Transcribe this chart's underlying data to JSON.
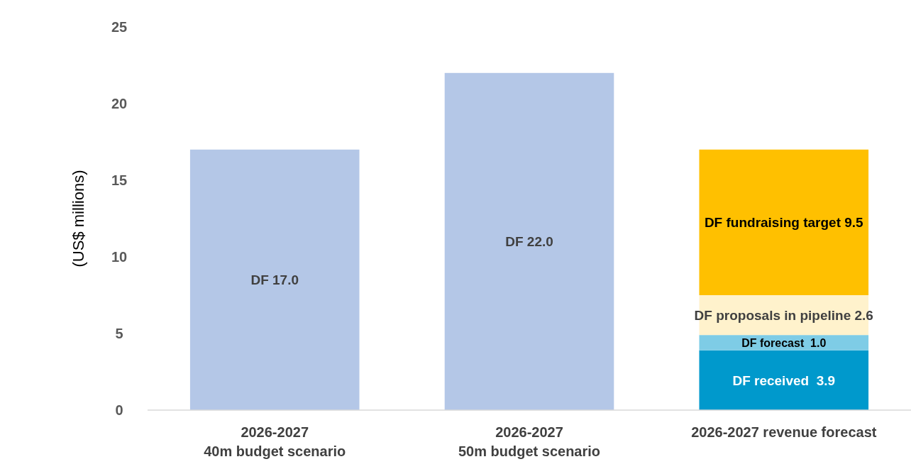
{
  "chart_data": {
    "type": "bar",
    "stacked": true,
    "ylabel": "(US$ millions)",
    "categories": [
      "2026-2027\n40m budget scenario",
      "2026-2027\n50m budget scenario",
      "2026-2027 revenue forecast"
    ],
    "series": [
      {
        "color": "#b4c7e7",
        "values": [
          17.0,
          22.0,
          null
        ],
        "value_labels": [
          "DF 17.0",
          "DF 22.0",
          null
        ]
      },
      {
        "color": "#0099cc",
        "values": [
          null,
          null,
          3.9
        ],
        "value_labels": [
          null,
          null,
          "DF received  3.9"
        ]
      },
      {
        "color": "#7ecce6",
        "values": [
          null,
          null,
          1.0
        ],
        "value_labels": [
          null,
          null,
          "DF forecast  1.0"
        ]
      },
      {
        "color": "#fff2cc",
        "values": [
          null,
          null,
          2.6
        ],
        "value_labels": [
          null,
          null,
          "DF proposals in pipeline 2.6"
        ]
      },
      {
        "color": "#ffc000",
        "values": [
          null,
          null,
          9.5
        ],
        "value_labels": [
          null,
          null,
          "DF fundraising target 9.5"
        ]
      }
    ],
    "ylim": [
      0,
      25
    ],
    "yticks": [
      0,
      5,
      10,
      15,
      20,
      25
    ],
    "grid": false
  }
}
